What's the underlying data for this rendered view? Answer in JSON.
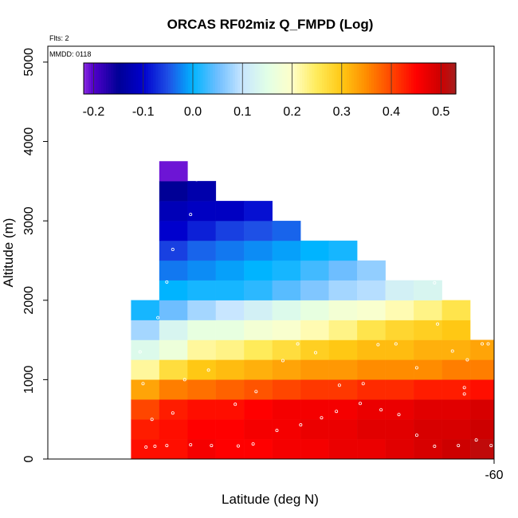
{
  "chart_data": {
    "type": "heatmap",
    "title": "ORCAS RF02miz Q_FMPD (Log)",
    "notes": [
      "Flts: 2",
      "MMDD: 0118"
    ],
    "xlabel": "Latitude (deg N)",
    "ylabel": "Altitude (m)",
    "x_tick_labels": [
      "-60"
    ],
    "x_ticks": [
      -60
    ],
    "xlim": [
      -75.0,
      -60.0
    ],
    "y_ticks": [
      0,
      1000,
      2000,
      3000,
      4000,
      5000
    ],
    "ylim": [
      0,
      5200
    ],
    "cell_height_m": 250,
    "cell_lat_edges": [
      -72.2,
      -71.25,
      -70.3,
      -69.35,
      -68.4,
      -67.45,
      -66.5,
      -65.55,
      -64.6,
      -63.65,
      -62.7,
      -61.75,
      -60.8,
      -59.85
    ],
    "colorbar": {
      "ticks": [
        -0.2,
        -0.1,
        0.0,
        0.1,
        0.2,
        0.3,
        0.4,
        0.5
      ],
      "tick_labels": [
        "-0.2",
        "-0.1",
        "0.0",
        "0.1",
        "0.2",
        "0.3",
        "0.4",
        "0.5"
      ],
      "range": [
        -0.22,
        0.53
      ]
    },
    "grid_rows": [
      {
        "alt_bottom": 0,
        "cols_start": 0,
        "values": [
          0.44,
          0.44,
          0.46,
          0.45,
          0.45,
          0.46,
          0.46,
          0.47,
          0.47,
          0.48,
          0.49,
          0.5,
          0.51
        ]
      },
      {
        "alt_bottom": 250,
        "cols_start": 0,
        "values": [
          0.43,
          0.44,
          0.45,
          0.45,
          0.46,
          0.46,
          0.47,
          0.47,
          0.48,
          0.48,
          0.49,
          0.49,
          0.5
        ]
      },
      {
        "alt_bottom": 500,
        "cols_start": 0,
        "values": [
          0.4,
          0.43,
          0.44,
          0.44,
          0.45,
          0.46,
          0.46,
          0.46,
          0.47,
          0.47,
          0.48,
          0.48,
          0.49
        ]
      },
      {
        "alt_bottom": 750,
        "cols_start": 0,
        "values": [
          0.33,
          0.36,
          0.37,
          0.38,
          0.39,
          0.4,
          0.41,
          0.41,
          0.42,
          0.42,
          0.43,
          0.43,
          0.44
        ]
      },
      {
        "alt_bottom": 1000,
        "cols_start": 0,
        "values": [
          0.22,
          0.27,
          0.3,
          0.31,
          0.32,
          0.33,
          0.34,
          0.34,
          0.35,
          0.35,
          0.35,
          0.36,
          0.36
        ]
      },
      {
        "alt_bottom": 1250,
        "cols_start": 0,
        "values": [
          0.14,
          0.17,
          0.22,
          0.23,
          0.25,
          0.27,
          0.29,
          0.3,
          0.31,
          0.31,
          0.32,
          0.32,
          0.33
        ]
      },
      {
        "alt_bottom": 1500,
        "cols_start": 0,
        "values": [
          0.08,
          0.13,
          0.16,
          0.16,
          0.18,
          0.19,
          0.21,
          0.23,
          0.26,
          0.28,
          0.29,
          0.3
        ]
      },
      {
        "alt_bottom": 1750,
        "cols_start": 0,
        "values": [
          0.01,
          0.05,
          0.08,
          0.1,
          0.12,
          0.14,
          0.16,
          0.18,
          0.19,
          0.21,
          0.23,
          0.26
        ]
      },
      {
        "alt_bottom": 2000,
        "cols_start": 1,
        "values": [
          0.0,
          0.01,
          0.01,
          0.02,
          0.04,
          0.06,
          0.08,
          0.09,
          0.12,
          0.13
        ]
      },
      {
        "alt_bottom": 2250,
        "cols_start": 1,
        "values": [
          -0.03,
          -0.02,
          -0.01,
          0.0,
          0.01,
          0.03,
          0.05,
          0.07
        ]
      },
      {
        "alt_bottom": 2500,
        "cols_start": 1,
        "values": [
          -0.06,
          -0.04,
          -0.03,
          -0.02,
          -0.01,
          0.0,
          0.01
        ]
      },
      {
        "alt_bottom": 2750,
        "cols_start": 1,
        "values": [
          -0.1,
          -0.08,
          -0.06,
          -0.05,
          -0.04
        ]
      },
      {
        "alt_bottom": 3000,
        "cols_start": 1,
        "values": [
          -0.12,
          -0.11,
          -0.11,
          -0.09
        ]
      },
      {
        "alt_bottom": 3250,
        "cols_start": 1,
        "values": [
          -0.15,
          -0.13
        ]
      },
      {
        "alt_bottom": 3500,
        "cols_start": 1,
        "values": [
          -0.21
        ]
      }
    ],
    "points": [
      [
        -71.7,
        150
      ],
      [
        -71.4,
        160
      ],
      [
        -71.0,
        170
      ],
      [
        -70.2,
        180
      ],
      [
        -69.5,
        170
      ],
      [
        -68.6,
        165
      ],
      [
        -68.1,
        190
      ],
      [
        -67.3,
        360
      ],
      [
        -66.5,
        430
      ],
      [
        -65.8,
        520
      ],
      [
        -65.3,
        600
      ],
      [
        -64.5,
        700
      ],
      [
        -63.8,
        620
      ],
      [
        -63.2,
        560
      ],
      [
        -62.6,
        300
      ],
      [
        -62.0,
        160
      ],
      [
        -61.2,
        170
      ],
      [
        -60.6,
        240
      ],
      [
        -60.1,
        170
      ],
      [
        -71.5,
        500
      ],
      [
        -70.8,
        580
      ],
      [
        -70.4,
        1000
      ],
      [
        -69.6,
        1120
      ],
      [
        -68.7,
        690
      ],
      [
        -68.0,
        850
      ],
      [
        -67.1,
        1240
      ],
      [
        -66.6,
        1450
      ],
      [
        -66.0,
        1340
      ],
      [
        -65.2,
        930
      ],
      [
        -64.4,
        950
      ],
      [
        -63.9,
        1440
      ],
      [
        -63.3,
        1450
      ],
      [
        -62.6,
        1150
      ],
      [
        -61.9,
        1700
      ],
      [
        -61.4,
        1360
      ],
      [
        -60.9,
        1250
      ],
      [
        -60.4,
        1450
      ],
      [
        -71.8,
        950
      ],
      [
        -71.9,
        1350
      ],
      [
        -71.3,
        1780
      ],
      [
        -71.0,
        2230
      ],
      [
        -70.8,
        2640
      ],
      [
        -70.2,
        3080
      ],
      [
        -70.0,
        3520
      ],
      [
        -62.0,
        2220
      ],
      [
        -61.0,
        900
      ],
      [
        -61.0,
        820
      ],
      [
        -60.2,
        1450
      ],
      [
        -59.95,
        1450
      ]
    ]
  }
}
